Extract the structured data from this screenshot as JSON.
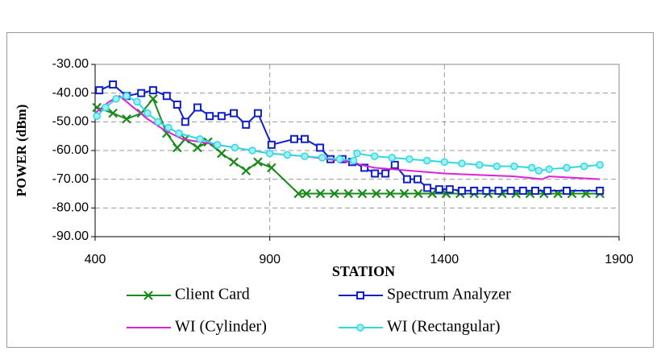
{
  "chart_data": {
    "type": "line",
    "xlabel": "STATION",
    "ylabel": "POWER (dBm)",
    "xlim": [
      400,
      1900
    ],
    "xticks": [
      400,
      900,
      1400,
      1900
    ],
    "ylim": [
      -90,
      -30
    ],
    "yticks": [
      {
        "value": -30,
        "label": "-30.00"
      },
      {
        "value": -40,
        "label": "-40.00"
      },
      {
        "value": -50,
        "label": "-50.00"
      },
      {
        "value": -60,
        "label": "-60.00"
      },
      {
        "value": -70,
        "label": "-70.00"
      },
      {
        "value": -80,
        "label": "-80.00"
      },
      {
        "value": -90,
        "label": "-90.00"
      }
    ],
    "grid": true,
    "series": [
      {
        "name": "Client Card",
        "color": "#1a8a1a",
        "marker": "x",
        "x": [
          405,
          451,
          490,
          532,
          566,
          605,
          635,
          658,
          693,
          723,
          762,
          797,
          832,
          866,
          905,
          982,
          1005,
          1045,
          1085,
          1125,
          1165,
          1205,
          1245,
          1285,
          1325,
          1365,
          1405,
          1445,
          1485,
          1525,
          1565,
          1605,
          1645,
          1685,
          1725,
          1765,
          1805,
          1845
        ],
        "values": [
          -45,
          -47,
          -49,
          -47,
          -42,
          -54,
          -59,
          -56,
          -59,
          -57,
          -61,
          -64,
          -67,
          -64,
          -66,
          -75,
          -75,
          -75,
          -75,
          -75,
          -75,
          -75,
          -75,
          -75,
          -75,
          -75,
          -75,
          -75,
          -75,
          -75,
          -75,
          -75,
          -75,
          -75,
          -75,
          -75,
          -75,
          -75
        ]
      },
      {
        "name": "Spectrum Analyzer",
        "color": "#1020c8",
        "marker": "square",
        "x": [
          412,
          451,
          490,
          532,
          566,
          605,
          635,
          658,
          693,
          728,
          762,
          797,
          832,
          866,
          905,
          970,
          1000,
          1044,
          1074,
          1108,
          1136,
          1171,
          1201,
          1231,
          1258,
          1293,
          1323,
          1351,
          1385,
          1415,
          1450,
          1485,
          1520,
          1555,
          1590,
          1625,
          1660,
          1695,
          1750,
          1845
        ],
        "values": [
          -39,
          -37,
          -41,
          -40,
          -39,
          -41,
          -44,
          -50,
          -45,
          -48,
          -48,
          -47,
          -51,
          -47,
          -58,
          -56,
          -56,
          -59,
          -63,
          -63,
          -64,
          -66,
          -68,
          -68,
          -65,
          -70,
          -70,
          -73,
          -73.5,
          -73.5,
          -74,
          -74,
          -74,
          -74,
          -74,
          -74,
          -74,
          -74,
          -74,
          -74
        ]
      },
      {
        "name": "WI (Cylinder)",
        "color": "#e020d8",
        "marker": "none",
        "x": [
          400,
          440,
          470,
          500,
          550,
          600,
          650,
          700,
          800,
          900,
          1000,
          1100,
          1150,
          1160,
          1200,
          1300,
          1400,
          1500,
          1600,
          1680,
          1700,
          1845
        ],
        "values": [
          -47,
          -43,
          -41,
          -44,
          -49,
          -53,
          -56,
          -57,
          -59,
          -61,
          -62,
          -63.5,
          -64.5,
          -65,
          -66,
          -67,
          -68,
          -68.5,
          -69,
          -70,
          -69,
          -70
        ]
      },
      {
        "name": "WI (Rectangular)",
        "color": "#30d8e0",
        "marker": "circle",
        "x": [
          405,
          430,
          460,
          490,
          520,
          550,
          580,
          610,
          640,
          700,
          750,
          800,
          850,
          900,
          950,
          1000,
          1050,
          1100,
          1140,
          1150,
          1200,
          1250,
          1300,
          1350,
          1400,
          1450,
          1500,
          1550,
          1600,
          1650,
          1670,
          1700,
          1750,
          1800,
          1845
        ],
        "values": [
          -48,
          -45,
          -42,
          -41,
          -43,
          -47,
          -50,
          -52,
          -54,
          -56,
          -58,
          -59,
          -60,
          -61,
          -61.5,
          -62,
          -62.5,
          -63,
          -63.5,
          -61,
          -62,
          -62.5,
          -63,
          -63.5,
          -64,
          -64.5,
          -65,
          -65.5,
          -65.5,
          -66,
          -67,
          -66.5,
          -66,
          -65.5,
          -65
        ]
      }
    ]
  }
}
